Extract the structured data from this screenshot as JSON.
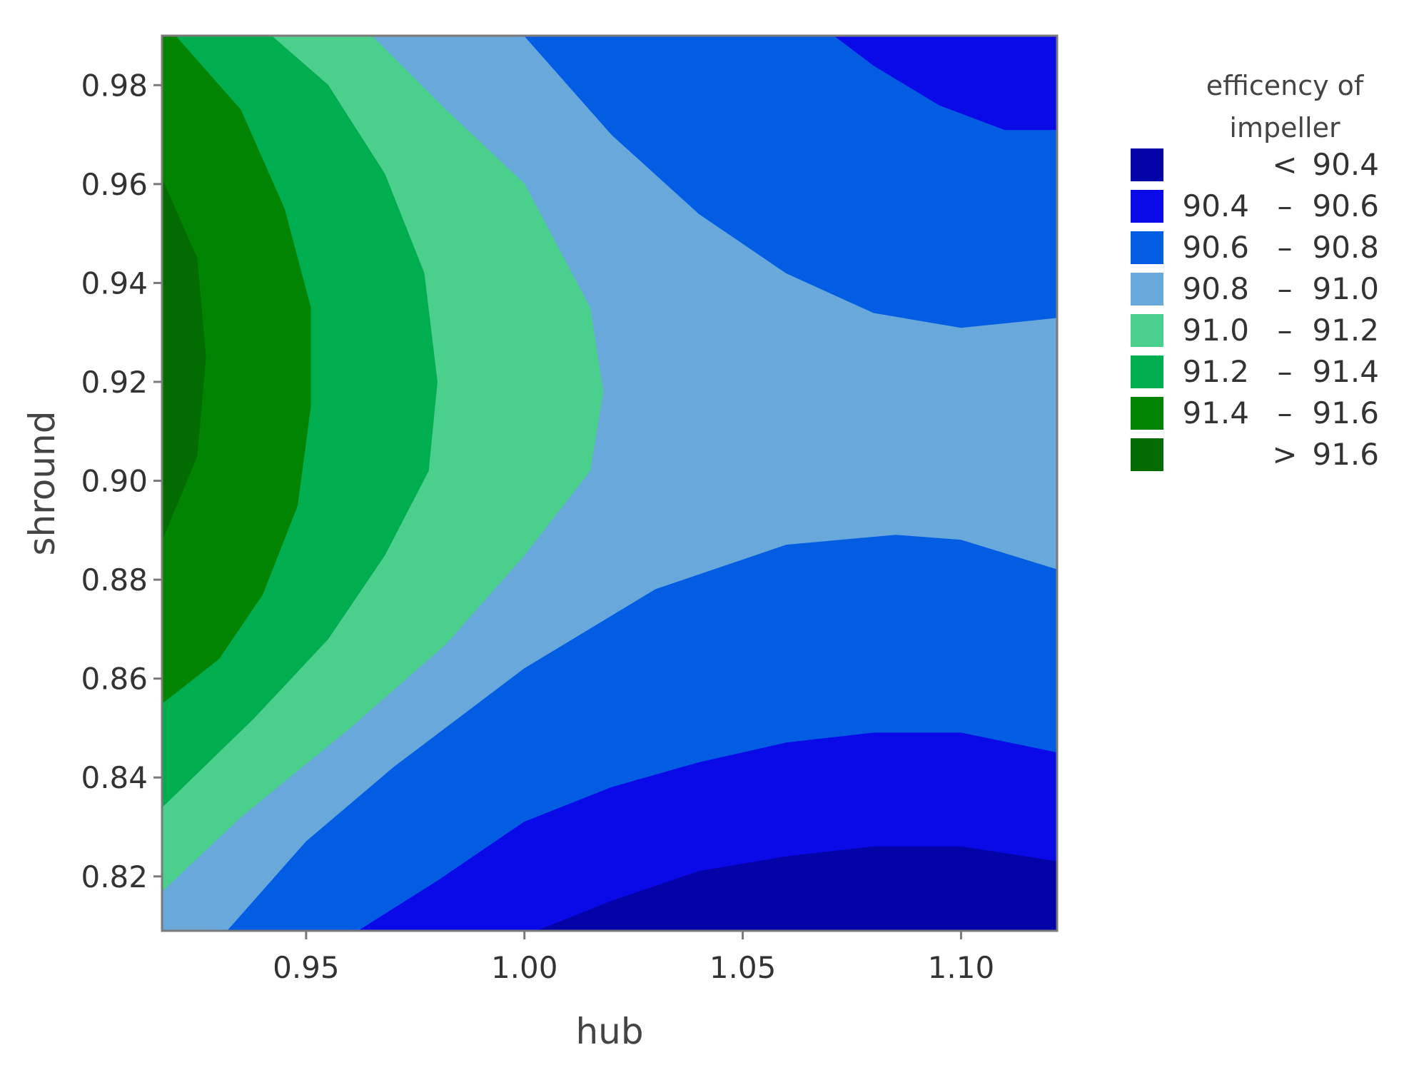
{
  "chart_data": {
    "type": "contour",
    "xlabel": "hub",
    "ylabel": "shround",
    "xlim": [
      0.917,
      1.122
    ],
    "ylim": [
      0.809,
      0.99
    ],
    "x_ticks": [
      "0.95",
      "1.00",
      "1.05",
      "1.10"
    ],
    "y_ticks": [
      "0.82",
      "0.84",
      "0.86",
      "0.88",
      "0.90",
      "0.92",
      "0.94",
      "0.96",
      "0.98"
    ],
    "grid": false,
    "legend": {
      "title_lines": [
        "efficency of",
        "impeller"
      ],
      "placement": "right",
      "levels": [
        {
          "low": "",
          "op": "<",
          "high": "90.4",
          "color": "#0303a8"
        },
        {
          "low": "90.4",
          "op": "–",
          "high": "90.6",
          "color": "#0a0ae8"
        },
        {
          "low": "90.6",
          "op": "–",
          "high": "90.8",
          "color": "#025de3"
        },
        {
          "low": "90.8",
          "op": "–",
          "high": "91.0",
          "color": "#68a8da"
        },
        {
          "low": "91.0",
          "op": "–",
          "high": "91.2",
          "color": "#4acf8d"
        },
        {
          "low": "91.2",
          "op": "–",
          "high": "91.4",
          "color": "#00ad4f"
        },
        {
          "low": "91.4",
          "op": "–",
          "high": "91.6",
          "color": "#028403"
        },
        {
          "low": "",
          "op": ">",
          "high": "91.6",
          "color": "#026b02"
        }
      ]
    },
    "regions": [
      {
        "level": "90.8 – 91.0",
        "color": "#68a8da",
        "polygon": [
          [
            0.917,
            0.809
          ],
          [
            1.122,
            0.809
          ],
          [
            1.122,
            0.99
          ],
          [
            0.917,
            0.99
          ]
        ]
      },
      {
        "level": "90.6 – 90.8",
        "color": "#025de3",
        "polygon": [
          [
            1.0,
            0.99
          ],
          [
            1.122,
            0.99
          ],
          [
            1.122,
            0.933
          ],
          [
            1.1,
            0.931
          ],
          [
            1.08,
            0.934
          ],
          [
            1.06,
            0.942
          ],
          [
            1.04,
            0.954
          ],
          [
            1.02,
            0.97
          ]
        ]
      },
      {
        "level": "90.4 – 90.6",
        "color": "#0a0ae8",
        "polygon": [
          [
            1.071,
            0.99
          ],
          [
            1.122,
            0.99
          ],
          [
            1.122,
            0.971
          ],
          [
            1.11,
            0.971
          ],
          [
            1.095,
            0.976
          ],
          [
            1.08,
            0.984
          ]
        ]
      },
      {
        "level": "90.6 – 90.8",
        "color": "#025de3",
        "polygon": [
          [
            0.932,
            0.809
          ],
          [
            1.122,
            0.809
          ],
          [
            1.122,
            0.882
          ],
          [
            1.1,
            0.888
          ],
          [
            1.085,
            0.889
          ],
          [
            1.06,
            0.887
          ],
          [
            1.03,
            0.878
          ],
          [
            1.0,
            0.862
          ],
          [
            0.97,
            0.842
          ],
          [
            0.95,
            0.827
          ]
        ]
      },
      {
        "level": "90.4 – 90.6",
        "color": "#0a0ae8",
        "polygon": [
          [
            0.962,
            0.809
          ],
          [
            1.122,
            0.809
          ],
          [
            1.122,
            0.845
          ],
          [
            1.1,
            0.849
          ],
          [
            1.08,
            0.849
          ],
          [
            1.06,
            0.847
          ],
          [
            1.04,
            0.843
          ],
          [
            1.02,
            0.838
          ],
          [
            1.0,
            0.831
          ],
          [
            0.98,
            0.819
          ]
        ]
      },
      {
        "level": "< 90.4",
        "color": "#0303a8",
        "polygon": [
          [
            1.003,
            0.809
          ],
          [
            1.122,
            0.809
          ],
          [
            1.122,
            0.823
          ],
          [
            1.1,
            0.826
          ],
          [
            1.08,
            0.826
          ],
          [
            1.06,
            0.824
          ],
          [
            1.04,
            0.821
          ],
          [
            1.02,
            0.815
          ]
        ]
      },
      {
        "level": "91.0 – 91.2",
        "color": "#4acf8d",
        "polygon": [
          [
            0.917,
            0.99
          ],
          [
            0.965,
            0.99
          ],
          [
            0.982,
            0.975
          ],
          [
            1.0,
            0.96
          ],
          [
            1.015,
            0.935
          ],
          [
            1.018,
            0.918
          ],
          [
            1.015,
            0.902
          ],
          [
            1.0,
            0.885
          ],
          [
            0.982,
            0.867
          ],
          [
            0.96,
            0.85
          ],
          [
            0.935,
            0.832
          ],
          [
            0.917,
            0.817
          ]
        ]
      },
      {
        "level": "91.2 – 91.4",
        "color": "#00ad4f",
        "polygon": [
          [
            0.917,
            0.99
          ],
          [
            0.942,
            0.99
          ],
          [
            0.955,
            0.98
          ],
          [
            0.968,
            0.962
          ],
          [
            0.977,
            0.942
          ],
          [
            0.98,
            0.92
          ],
          [
            0.978,
            0.902
          ],
          [
            0.968,
            0.885
          ],
          [
            0.955,
            0.868
          ],
          [
            0.938,
            0.852
          ],
          [
            0.917,
            0.834
          ]
        ]
      },
      {
        "level": "91.4 – 91.6",
        "color": "#028403",
        "polygon": [
          [
            0.917,
            0.99
          ],
          [
            0.92,
            0.99
          ],
          [
            0.935,
            0.975
          ],
          [
            0.945,
            0.955
          ],
          [
            0.951,
            0.935
          ],
          [
            0.951,
            0.915
          ],
          [
            0.948,
            0.895
          ],
          [
            0.94,
            0.877
          ],
          [
            0.93,
            0.864
          ],
          [
            0.917,
            0.855
          ]
        ]
      },
      {
        "level": "> 91.6",
        "color": "#026b02",
        "polygon": [
          [
            0.917,
            0.961
          ],
          [
            0.925,
            0.945
          ],
          [
            0.927,
            0.925
          ],
          [
            0.925,
            0.905
          ],
          [
            0.917,
            0.888
          ]
        ]
      }
    ]
  }
}
